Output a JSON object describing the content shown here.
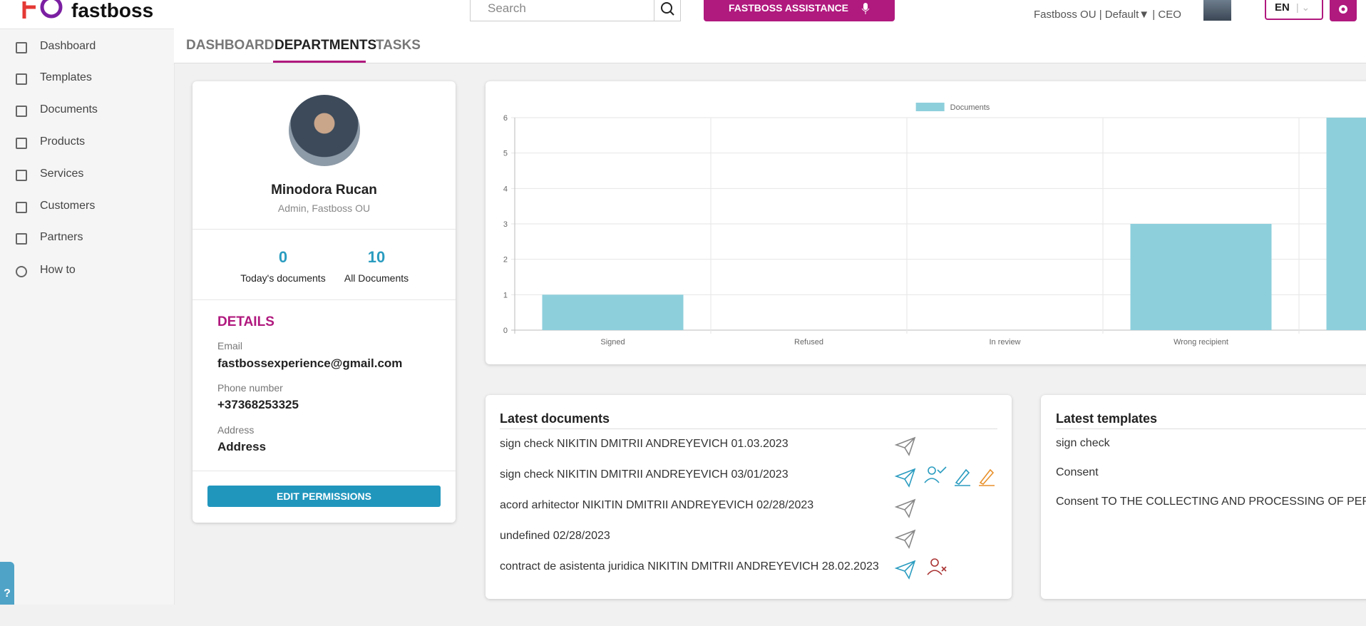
{
  "header": {
    "logo": "fastboss",
    "search_placeholder": "Search",
    "assistance": "FASTBOSS ASSISTANCE",
    "company": "Fastboss OU",
    "profile": "Default▼",
    "position": "CEO",
    "lang": "EN"
  },
  "sidebar": {
    "items": [
      "Dashboard",
      "Templates",
      "Documents",
      "Products",
      "Services",
      "Customers",
      "Partners",
      "How to"
    ]
  },
  "tabs": [
    "DASHBOARD",
    "DEPARTMENTS",
    "TASKS"
  ],
  "profile": {
    "name": "Minodora Rucan",
    "subtitle": "Admin, Fastboss OU",
    "today_count": "0",
    "today_label": "Today's documents",
    "all_count": "10",
    "all_label": "All Documents",
    "details_title": "DETAILS",
    "email_label": "Email",
    "email": "fastbossexperience@gmail.com",
    "phone_label": "Phone number",
    "phone": "+37368253325",
    "address_label": "Address",
    "address": "Address",
    "button": "EDIT PERMISSIONS"
  },
  "chart_data": {
    "type": "bar",
    "categories": [
      "Signed",
      "Refused",
      "In review",
      "Wrong recipient",
      null
    ],
    "series": [
      {
        "name": "Documents",
        "color": "#8ecfdc",
        "values": [
          1,
          0,
          0,
          3,
          6
        ]
      }
    ],
    "ylim": [
      0,
      6
    ],
    "yticks": [
      0,
      1,
      2,
      3,
      4,
      5,
      6
    ],
    "grid": true,
    "legend": "top"
  },
  "latest_documents": {
    "title": "Latest documents",
    "items": [
      "sign check NIKITIN DMITRII ANDREYEVICH 01.03.2023",
      "sign check NIKITIN DMITRII ANDREYEVICH 03/01/2023",
      "acord arhitector NIKITIN DMITRII ANDREYEVICH 02/28/2023",
      "undefined 02/28/2023",
      "contract de asistenta juridica NIKITIN DMITRII ANDREYEVICH 28.02.2023"
    ]
  },
  "latest_templates": {
    "title": "Latest templates",
    "items": [
      "sign check",
      "Consent",
      "Consent TO THE COLLECTING AND PROCESSING OF PERSO"
    ]
  }
}
